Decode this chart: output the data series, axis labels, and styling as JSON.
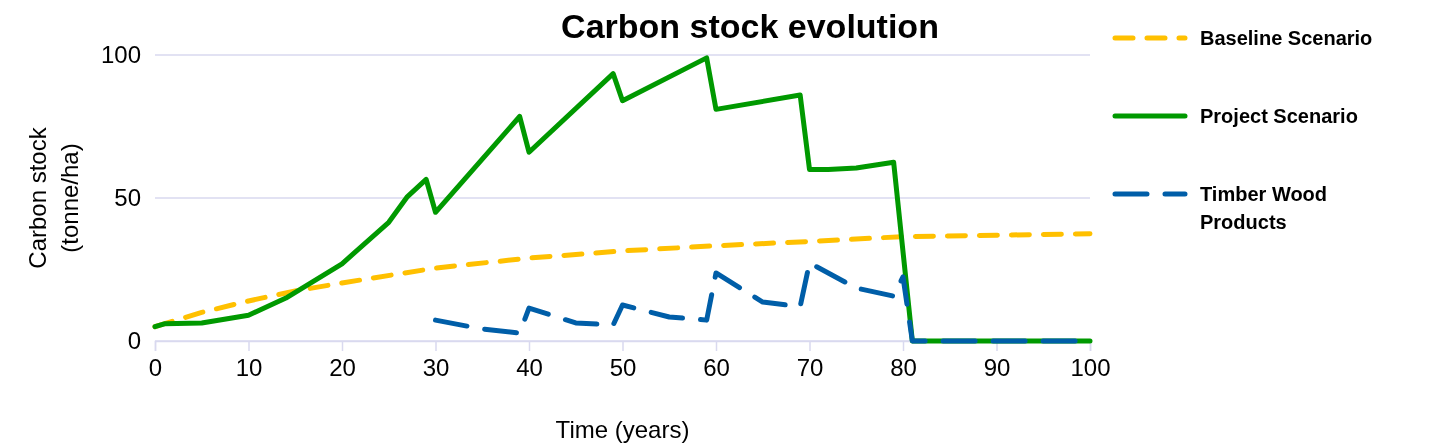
{
  "chart_data": {
    "type": "line",
    "title": "Carbon stock evolution",
    "xlabel": "Time (years)",
    "ylabel": "Carbon stock (tonne/ha)",
    "xlim": [
      0,
      100
    ],
    "xticks": [
      0,
      10,
      20,
      30,
      40,
      50,
      60,
      70,
      80,
      90,
      100
    ],
    "ylim": [
      0,
      100
    ],
    "yticks": [
      0,
      50,
      100
    ],
    "grid": "y",
    "legend": "right",
    "series": [
      {
        "name": "Baseline Scenario",
        "color": "#ffc000",
        "line_style": "dashed",
        "x": [
          0,
          5,
          10,
          15,
          20,
          30,
          40,
          50,
          60,
          70,
          80,
          90,
          100
        ],
        "values": [
          5,
          10,
          14,
          17.5,
          20.3,
          25.5,
          29,
          31.5,
          33.3,
          34.8,
          36.5,
          37,
          37.5
        ]
      },
      {
        "name": "Project Scenario",
        "color": "#009900",
        "line_style": "solid",
        "x": [
          0,
          1,
          5,
          10,
          14,
          20,
          25,
          27,
          29,
          30,
          39,
          40,
          49,
          50,
          59,
          60,
          69,
          70,
          72,
          75,
          79,
          81,
          100
        ],
        "values": [
          5,
          6,
          6.3,
          9,
          15,
          27,
          41.5,
          50.5,
          56.5,
          45,
          78.5,
          66,
          93.5,
          84,
          99,
          81,
          86,
          60,
          60,
          60.5,
          62.5,
          0,
          0
        ]
      },
      {
        "name": "Timber Wood Products",
        "color": "#005ea8",
        "line_style": "longdash",
        "x": [
          30,
          35,
          39,
          40,
          45,
          49,
          50,
          55,
          59,
          60,
          65,
          69,
          70,
          75,
          79,
          80,
          81,
          100
        ],
        "values": [
          7.3,
          4.2,
          2.8,
          11.5,
          6.3,
          5.6,
          12.6,
          8.4,
          7.3,
          23.8,
          13.6,
          12,
          27.3,
          18.5,
          15.7,
          22.4,
          0,
          0
        ]
      }
    ]
  }
}
